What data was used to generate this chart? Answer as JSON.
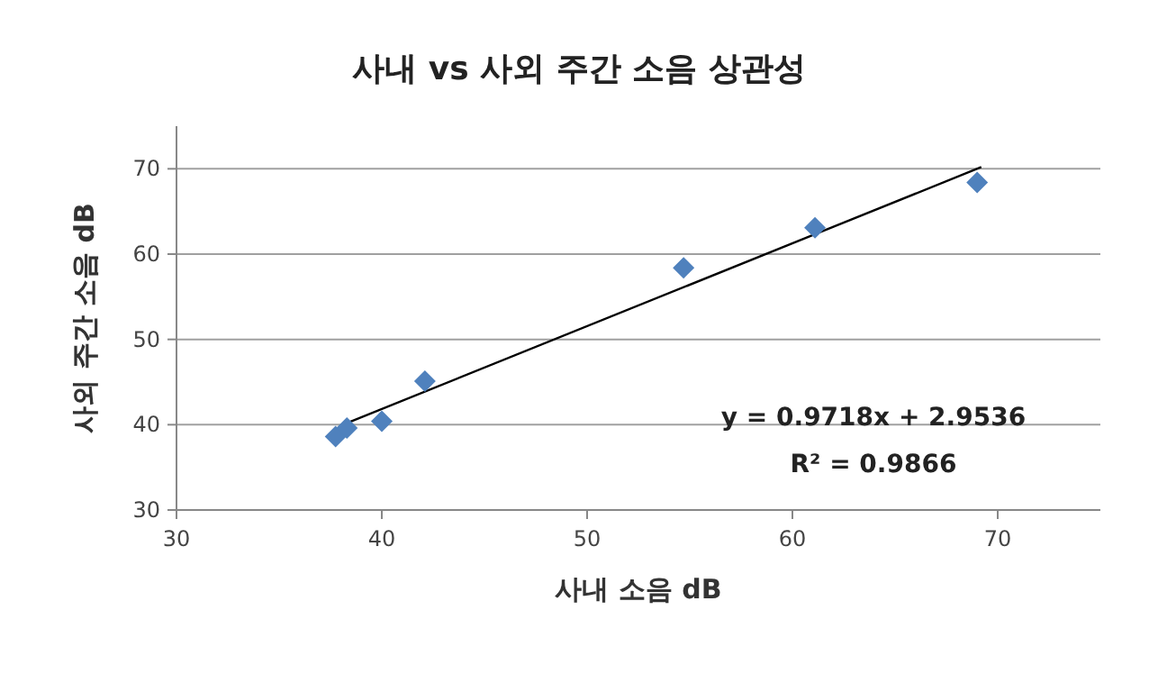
{
  "chart_data": {
    "type": "scatter",
    "title": "사내 vs 사외 주간 소음 상관성",
    "xlabel": "사내 소음 dB",
    "ylabel": "사외 주간 소음 dB",
    "xlim": [
      30,
      75
    ],
    "xticks": [
      30,
      40,
      50,
      60,
      70
    ],
    "ylim": [
      30,
      75
    ],
    "yticks": [
      30,
      40,
      50,
      60,
      70
    ],
    "grid": "y",
    "series": [
      {
        "color": "#4f81bd",
        "marker": "diamond",
        "x": [
          37.75,
          38.3,
          40.0,
          42.1,
          54.7,
          61.1,
          69.0
        ],
        "values": [
          38.6,
          39.6,
          40.4,
          45.1,
          58.4,
          63.1,
          68.4
        ]
      },
      {
        "type": "line",
        "color": "#000000",
        "x": [
          38.1,
          69.2
        ],
        "values": [
          40.0,
          70.2
        ]
      }
    ],
    "annotations": [
      "y = 0.9718x + 2.9536",
      "R² = 0.9866"
    ]
  }
}
